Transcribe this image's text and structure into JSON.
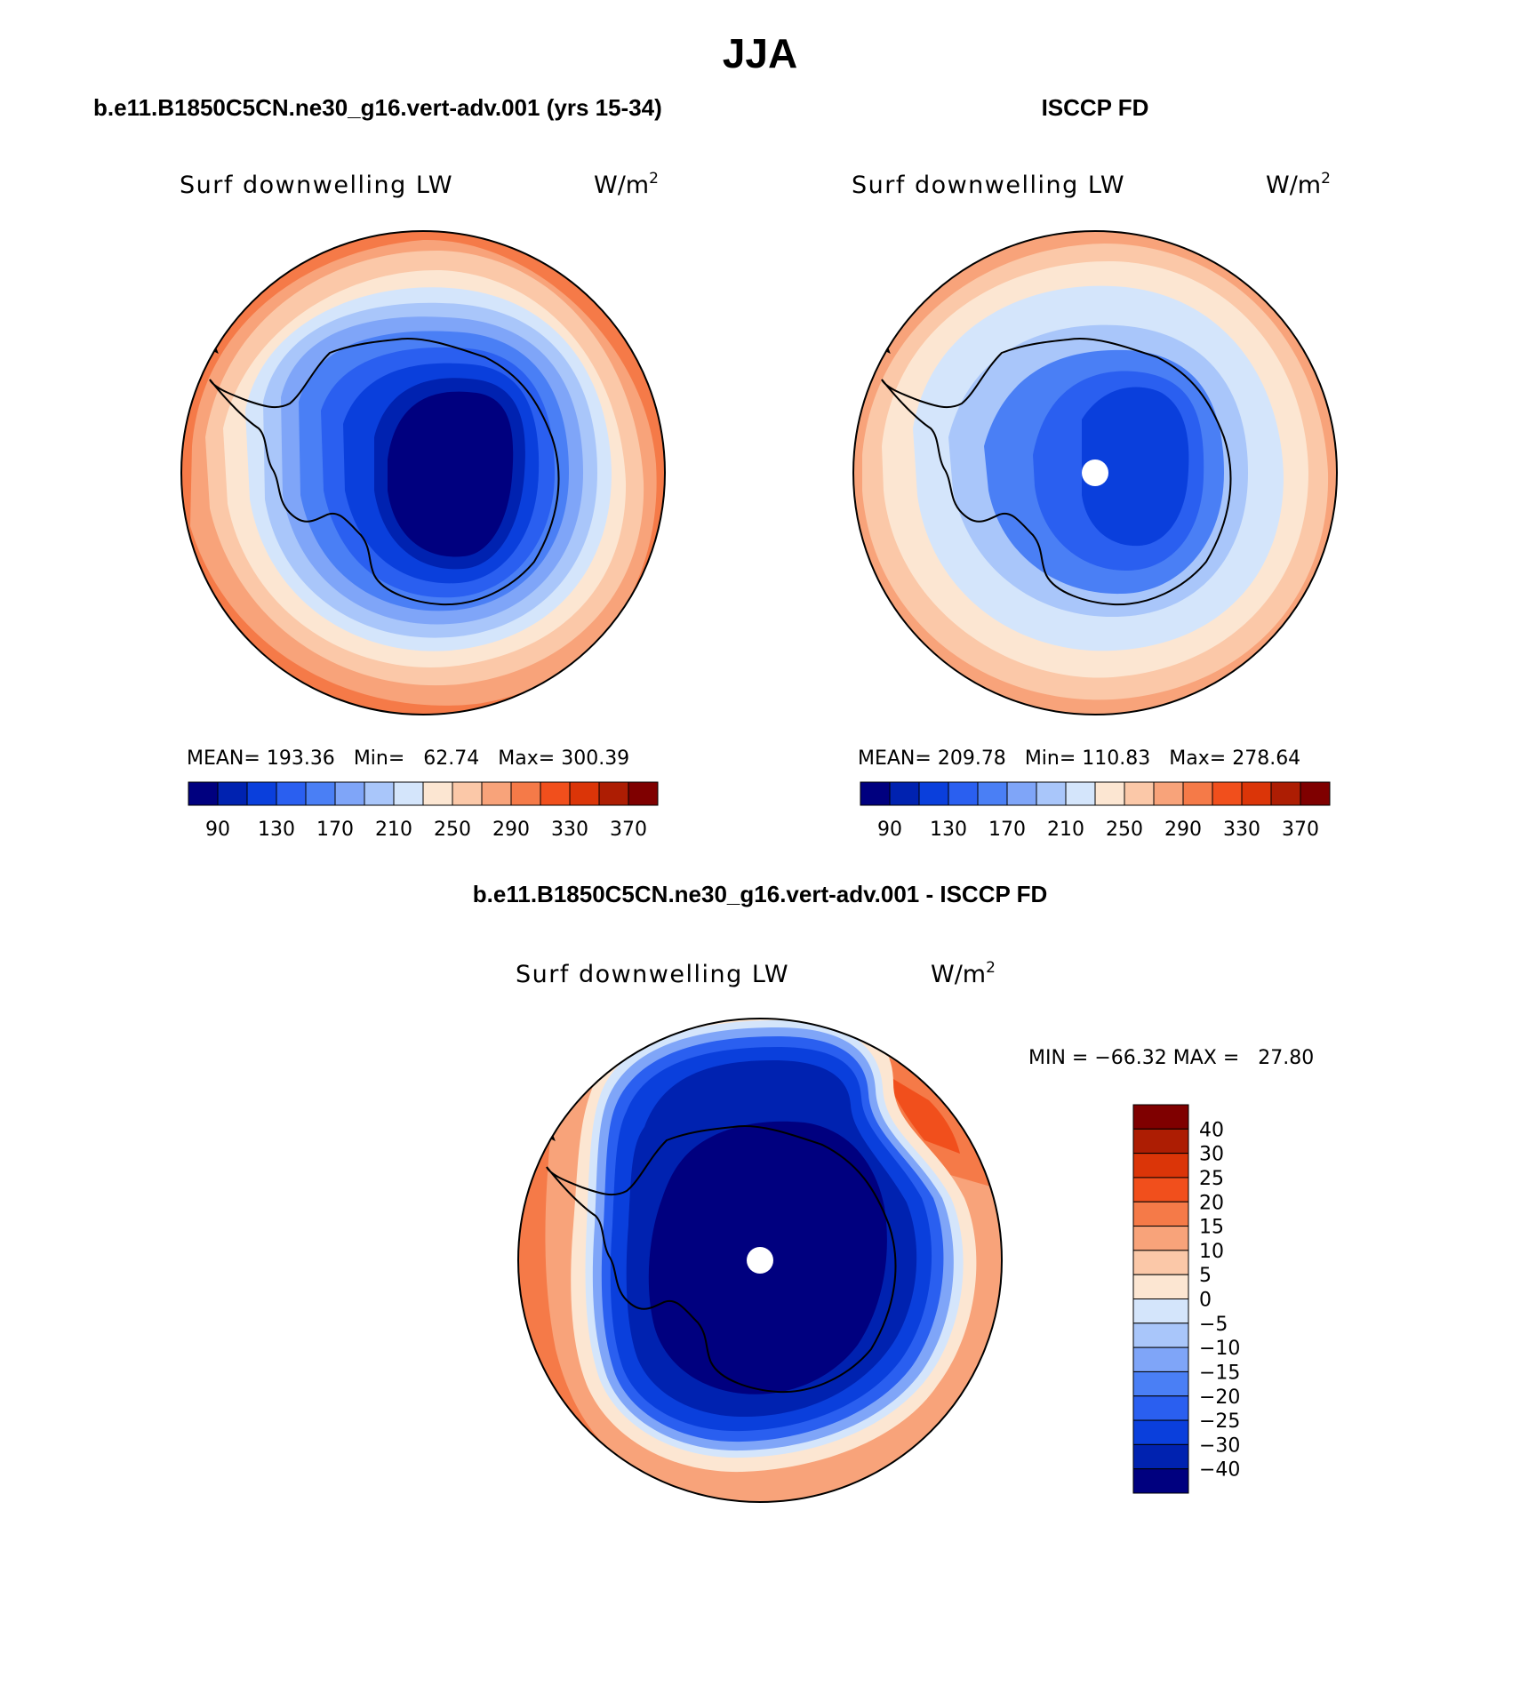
{
  "page_title": "JJA",
  "top_left": {
    "case_label": "b.e11.B1850C5CN.ne30_g16.vert-adv.001 (yrs 15-34)",
    "variable": "Surf downwelling LW",
    "units": "W/m",
    "units_exp": "2",
    "stats": {
      "mean_label": "MEAN=",
      "mean": "193.36",
      "min_label": "Min=",
      "min": "62.74",
      "max_label": "Max=",
      "max": "300.39"
    }
  },
  "top_right": {
    "case_label": "ISCCP FD",
    "variable": "Surf downwelling LW",
    "units": "W/m",
    "units_exp": "2",
    "stats": {
      "mean_label": "MEAN=",
      "mean": "209.78",
      "min_label": "Min=",
      "min": "110.83",
      "max_label": "Max=",
      "max": "278.64"
    }
  },
  "bottom": {
    "case_label": "b.e11.B1850C5CN.ne30_g16.vert-adv.001 - ISCCP FD",
    "variable": "Surf downwelling LW",
    "units": "W/m",
    "units_exp": "2",
    "minmax_text": "MIN = −66.32 MAX =   27.80"
  },
  "chart_data": [
    {
      "type": "heatmap",
      "title": "Surf downwelling LW",
      "subtitle": "b.e11.B1850C5CN.ne30_g16.vert-adv.001 (yrs 15-34)",
      "projection": "south polar stereographic",
      "units": "W/m2",
      "mean": 193.36,
      "min": 62.74,
      "max": 300.39,
      "levels": [
        90,
        110,
        130,
        150,
        170,
        190,
        210,
        230,
        250,
        270,
        290,
        310,
        330,
        350,
        370
      ],
      "colorbar_ticks": [
        "90",
        "130",
        "170",
        "210",
        "250",
        "290",
        "330",
        "370"
      ],
      "colors": [
        "#00007f",
        "#0022b0",
        "#0a3fdc",
        "#2a5ff0",
        "#4a7ff5",
        "#7fa5f8",
        "#a9c6fa",
        "#d4e5fb",
        "#fce6d2",
        "#fbc8a8",
        "#f8a37a",
        "#f57a48",
        "#f14f1c",
        "#db3508",
        "#ad1d03",
        "#7f0000"
      ]
    },
    {
      "type": "heatmap",
      "title": "Surf downwelling LW",
      "subtitle": "ISCCP FD",
      "projection": "south polar stereographic",
      "units": "W/m2",
      "mean": 209.78,
      "min": 110.83,
      "max": 278.64,
      "levels": [
        90,
        110,
        130,
        150,
        170,
        190,
        210,
        230,
        250,
        270,
        290,
        310,
        330,
        350,
        370
      ],
      "colorbar_ticks": [
        "90",
        "130",
        "170",
        "210",
        "250",
        "290",
        "330",
        "370"
      ],
      "colors": [
        "#00007f",
        "#0022b0",
        "#0a3fdc",
        "#2a5ff0",
        "#4a7ff5",
        "#7fa5f8",
        "#a9c6fa",
        "#d4e5fb",
        "#fce6d2",
        "#fbc8a8",
        "#f8a37a",
        "#f57a48",
        "#f14f1c",
        "#db3508",
        "#ad1d03",
        "#7f0000"
      ]
    },
    {
      "type": "heatmap",
      "title": "Surf downwelling LW",
      "subtitle": "b.e11.B1850C5CN.ne30_g16.vert-adv.001 - ISCCP FD",
      "projection": "south polar stereographic",
      "units": "W/m2",
      "min": -66.32,
      "max": 27.8,
      "levels": [
        -40,
        -30,
        -25,
        -20,
        -15,
        -10,
        -5,
        0,
        5,
        10,
        15,
        20,
        25,
        30,
        40
      ],
      "colorbar_ticks": [
        "40",
        "30",
        "25",
        "20",
        "15",
        "10",
        "5",
        "0",
        "−5",
        "−10",
        "−15",
        "−20",
        "−25",
        "−30",
        "−40"
      ],
      "colors": [
        "#00007f",
        "#0022b0",
        "#0a3fdc",
        "#2a5ff0",
        "#4a7ff5",
        "#7fa5f8",
        "#a9c6fa",
        "#d4e5fb",
        "#fce6d2",
        "#fbc8a8",
        "#f8a37a",
        "#f57a48",
        "#f14f1c",
        "#db3508",
        "#ad1d03",
        "#7f0000"
      ]
    }
  ]
}
